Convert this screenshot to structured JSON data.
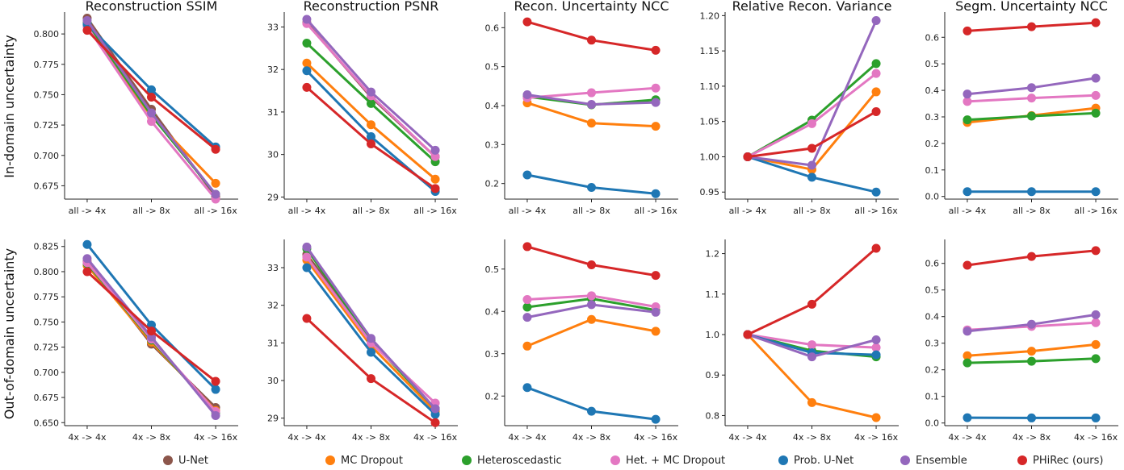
{
  "colors": {
    "U-Net": "#8c564b",
    "MC Dropout": "#ff7f0e",
    "Heteroscedastic": "#2ca02c",
    "Het. + MC Dropout": "#e377c2",
    "Prob. U-Net": "#1f77b4",
    "Ensemble": "#9467bd",
    "PHiRec (ours)": "#d62728"
  },
  "row_labels": [
    "In-domain uncertainty",
    "Out-of-domain uncertainty"
  ],
  "legend": [
    "U-Net",
    "MC Dropout",
    "Heteroscedastic",
    "Het. + MC Dropout",
    "Prob. U-Net",
    "Ensemble",
    "PHiRec (ours)"
  ],
  "chart_data": [
    {
      "type": "line",
      "row": 0,
      "col": 0,
      "title": "Reconstruction SSIM",
      "categories": [
        "all -> 4x",
        "all -> 8x",
        "all -> 16x"
      ],
      "ylim": [
        0.664,
        0.818
      ],
      "yticks": [
        "0.675",
        "0.700",
        "0.725",
        "0.750",
        "0.775",
        "0.800"
      ],
      "series": [
        {
          "name": "U-Net",
          "values": [
            0.813,
            0.738,
            0.666
          ]
        },
        {
          "name": "MC Dropout",
          "values": [
            0.807,
            0.732,
            0.677
          ]
        },
        {
          "name": "Heteroscedastic",
          "values": [
            0.809,
            0.733,
            0.668
          ]
        },
        {
          "name": "Het. + MC Dropout",
          "values": [
            0.806,
            0.728,
            0.664
          ]
        },
        {
          "name": "Prob. U-Net",
          "values": [
            0.808,
            0.754,
            0.707
          ]
        },
        {
          "name": "Ensemble",
          "values": [
            0.811,
            0.735,
            0.668
          ]
        },
        {
          "name": "PHiRec (ours)",
          "values": [
            0.803,
            0.748,
            0.705
          ]
        }
      ]
    },
    {
      "type": "line",
      "row": 0,
      "col": 1,
      "title": "Reconstruction PSNR",
      "categories": [
        "all -> 4x",
        "all -> 8x",
        "all -> 16x"
      ],
      "ylim": [
        28.95,
        33.35
      ],
      "yticks": [
        "29",
        "30",
        "31",
        "32",
        "33"
      ],
      "series": [
        {
          "name": "U-Net",
          "values": [
            33.1,
            31.35,
            29.95
          ]
        },
        {
          "name": "MC Dropout",
          "values": [
            32.15,
            30.7,
            29.42
          ]
        },
        {
          "name": "Heteroscedastic",
          "values": [
            32.62,
            31.2,
            29.83
          ]
        },
        {
          "name": "Het. + MC Dropout",
          "values": [
            33.08,
            31.38,
            29.95
          ]
        },
        {
          "name": "Prob. U-Net",
          "values": [
            31.97,
            30.42,
            29.13
          ]
        },
        {
          "name": "Ensemble",
          "values": [
            33.18,
            31.47,
            30.1
          ]
        },
        {
          "name": "PHiRec (ours)",
          "values": [
            31.58,
            30.25,
            29.2
          ]
        }
      ]
    },
    {
      "type": "line",
      "row": 0,
      "col": 2,
      "title": "Recon. Uncertainty NCC",
      "categories": [
        "all -> 4x",
        "all -> 8x",
        "all -> 16x"
      ],
      "ylim": [
        0.16,
        0.64
      ],
      "yticks": [
        "0.2",
        "0.3",
        "0.4",
        "0.5",
        "0.6"
      ],
      "series": [
        {
          "name": "MC Dropout",
          "values": [
            0.407,
            0.355,
            0.347
          ]
        },
        {
          "name": "Heteroscedastic",
          "values": [
            0.423,
            0.402,
            0.415
          ]
        },
        {
          "name": "Het. + MC Dropout",
          "values": [
            0.42,
            0.433,
            0.445
          ]
        },
        {
          "name": "Prob. U-Net",
          "values": [
            0.222,
            0.19,
            0.174
          ]
        },
        {
          "name": "Ensemble",
          "values": [
            0.428,
            0.403,
            0.408
          ]
        },
        {
          "name": "PHiRec (ours)",
          "values": [
            0.615,
            0.568,
            0.542
          ]
        }
      ]
    },
    {
      "type": "line",
      "row": 0,
      "col": 3,
      "title": "Relative Recon. Variance",
      "categories": [
        "all -> 4x",
        "all -> 8x",
        "all -> 16x"
      ],
      "ylim": [
        0.94,
        1.205
      ],
      "yticks": [
        "0.95",
        "1.00",
        "1.05",
        "1.10",
        "1.15",
        "1.20"
      ],
      "series": [
        {
          "name": "MC Dropout",
          "values": [
            1.0,
            0.982,
            1.092
          ]
        },
        {
          "name": "Heteroscedastic",
          "values": [
            1.0,
            1.052,
            1.132
          ]
        },
        {
          "name": "Het. + MC Dropout",
          "values": [
            1.0,
            1.047,
            1.118
          ]
        },
        {
          "name": "Prob. U-Net",
          "values": [
            1.0,
            0.971,
            0.95
          ]
        },
        {
          "name": "Ensemble",
          "values": [
            1.0,
            0.988,
            1.193
          ]
        },
        {
          "name": "PHiRec (ours)",
          "values": [
            1.0,
            1.012,
            1.064
          ]
        }
      ]
    },
    {
      "type": "line",
      "row": 0,
      "col": 4,
      "title": "Segm. Uncertainty NCC",
      "categories": [
        "all -> 4x",
        "all -> 8x",
        "all -> 16x"
      ],
      "ylim": [
        -0.01,
        0.695
      ],
      "yticks": [
        "0.0",
        "0.1",
        "0.2",
        "0.3",
        "0.4",
        "0.5",
        "0.6"
      ],
      "series": [
        {
          "name": "MC Dropout",
          "values": [
            0.279,
            0.305,
            0.333
          ]
        },
        {
          "name": "Heteroscedastic",
          "values": [
            0.289,
            0.303,
            0.314
          ]
        },
        {
          "name": "Het. + MC Dropout",
          "values": [
            0.358,
            0.371,
            0.381
          ]
        },
        {
          "name": "Prob. U-Net",
          "values": [
            0.018,
            0.018,
            0.018
          ]
        },
        {
          "name": "Ensemble",
          "values": [
            0.386,
            0.41,
            0.446
          ]
        },
        {
          "name": "PHiRec (ours)",
          "values": [
            0.624,
            0.64,
            0.655
          ]
        }
      ]
    },
    {
      "type": "line",
      "row": 1,
      "col": 0,
      "title": "",
      "categories": [
        "4x -> 4x",
        "4x -> 8x",
        "4x -> 16x"
      ],
      "ylim": [
        0.647,
        0.832
      ],
      "yticks": [
        "0.650",
        "0.675",
        "0.700",
        "0.725",
        "0.750",
        "0.775",
        "0.800",
        "0.825"
      ],
      "series": [
        {
          "name": "U-Net",
          "values": [
            0.81,
            0.728,
            0.665
          ]
        },
        {
          "name": "MC Dropout",
          "values": [
            0.806,
            0.73,
            0.662
          ]
        },
        {
          "name": "Heteroscedastic",
          "values": [
            0.808,
            0.732,
            0.66
          ]
        },
        {
          "name": "Het. + MC Dropout",
          "values": [
            0.809,
            0.733,
            0.661
          ]
        },
        {
          "name": "Prob. U-Net",
          "values": [
            0.827,
            0.747,
            0.683
          ]
        },
        {
          "name": "Ensemble",
          "values": [
            0.813,
            0.735,
            0.657
          ]
        },
        {
          "name": "PHiRec (ours)",
          "values": [
            0.8,
            0.741,
            0.691
          ]
        }
      ]
    },
    {
      "type": "line",
      "row": 1,
      "col": 1,
      "title": "",
      "categories": [
        "4x -> 4x",
        "4x -> 8x",
        "4x -> 16x"
      ],
      "ylim": [
        28.8,
        33.75
      ],
      "yticks": [
        "29",
        "30",
        "31",
        "32",
        "33"
      ],
      "series": [
        {
          "name": "U-Net",
          "values": [
            33.35,
            31.1,
            29.25
          ]
        },
        {
          "name": "MC Dropout",
          "values": [
            33.2,
            30.92,
            29.18
          ]
        },
        {
          "name": "Heteroscedastic",
          "values": [
            33.5,
            31.05,
            29.25
          ]
        },
        {
          "name": "Het. + MC Dropout",
          "values": [
            33.28,
            31.0,
            29.4
          ]
        },
        {
          "name": "Prob. U-Net",
          "values": [
            33.0,
            30.75,
            29.1
          ]
        },
        {
          "name": "Ensemble",
          "values": [
            33.55,
            31.12,
            29.25
          ]
        },
        {
          "name": "PHiRec (ours)",
          "values": [
            31.65,
            30.05,
            28.88
          ]
        }
      ]
    },
    {
      "type": "line",
      "row": 1,
      "col": 2,
      "title": "",
      "categories": [
        "4x -> 4x",
        "4x -> 8x",
        "4x -> 16x"
      ],
      "ylim": [
        0.13,
        0.57
      ],
      "yticks": [
        "0.2",
        "0.3",
        "0.4",
        "0.5"
      ],
      "series": [
        {
          "name": "MC Dropout",
          "values": [
            0.318,
            0.381,
            0.353
          ]
        },
        {
          "name": "Heteroscedastic",
          "values": [
            0.41,
            0.43,
            0.403
          ]
        },
        {
          "name": "Het. + MC Dropout",
          "values": [
            0.428,
            0.437,
            0.411
          ]
        },
        {
          "name": "Prob. U-Net",
          "values": [
            0.22,
            0.164,
            0.145
          ]
        },
        {
          "name": "Ensemble",
          "values": [
            0.386,
            0.416,
            0.398
          ]
        },
        {
          "name": "PHiRec (ours)",
          "values": [
            0.553,
            0.51,
            0.485
          ]
        }
      ]
    },
    {
      "type": "line",
      "row": 1,
      "col": 3,
      "title": "",
      "categories": [
        "4x -> 4x",
        "4x -> 8x",
        "4x -> 16x"
      ],
      "ylim": [
        0.775,
        1.235
      ],
      "yticks": [
        "0.8",
        "0.9",
        "1.0",
        "1.1",
        "1.2"
      ],
      "series": [
        {
          "name": "MC Dropout",
          "values": [
            1.0,
            0.832,
            0.795
          ]
        },
        {
          "name": "Heteroscedastic",
          "values": [
            1.0,
            0.96,
            0.945
          ]
        },
        {
          "name": "Het. + MC Dropout",
          "values": [
            1.0,
            0.975,
            0.968
          ]
        },
        {
          "name": "Prob. U-Net",
          "values": [
            1.0,
            0.955,
            0.95
          ]
        },
        {
          "name": "Ensemble",
          "values": [
            1.0,
            0.945,
            0.987
          ]
        },
        {
          "name": "PHiRec (ours)",
          "values": [
            1.0,
            1.075,
            1.213
          ]
        }
      ]
    },
    {
      "type": "line",
      "row": 1,
      "col": 4,
      "title": "",
      "categories": [
        "4x -> 4x",
        "4x -> 8x",
        "4x -> 16x"
      ],
      "ylim": [
        -0.01,
        0.69
      ],
      "yticks": [
        "0.0",
        "0.1",
        "0.2",
        "0.3",
        "0.4",
        "0.5",
        "0.6"
      ],
      "series": [
        {
          "name": "MC Dropout",
          "values": [
            0.253,
            0.27,
            0.295
          ]
        },
        {
          "name": "Heteroscedastic",
          "values": [
            0.226,
            0.232,
            0.242
          ]
        },
        {
          "name": "Het. + MC Dropout",
          "values": [
            0.35,
            0.363,
            0.377
          ]
        },
        {
          "name": "Prob. U-Net",
          "values": [
            0.02,
            0.019,
            0.019
          ]
        },
        {
          "name": "Ensemble",
          "values": [
            0.345,
            0.371,
            0.407
          ]
        },
        {
          "name": "PHiRec (ours)",
          "values": [
            0.593,
            0.626,
            0.648
          ]
        }
      ]
    }
  ]
}
